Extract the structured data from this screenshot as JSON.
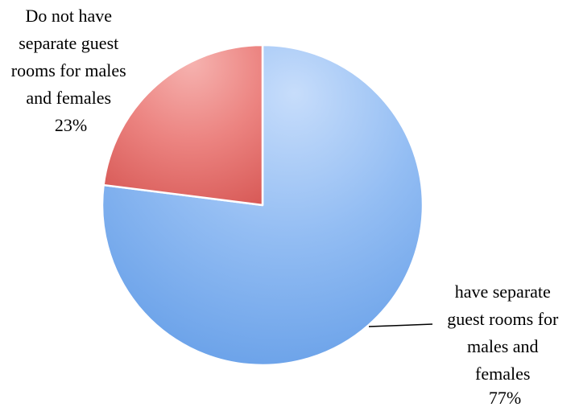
{
  "chart_data": {
    "type": "pie",
    "slices": [
      {
        "label_lines": [
          "have separate",
          "guest rooms for",
          "males and",
          "females"
        ],
        "value": 77,
        "value_text": "77%",
        "color": "#7fb2ef"
      },
      {
        "label_lines": [
          "Do not have",
          "separate guest",
          "rooms for males",
          "and females"
        ],
        "value": 23,
        "value_text": "23%",
        "color": "#e8716f"
      }
    ]
  }
}
